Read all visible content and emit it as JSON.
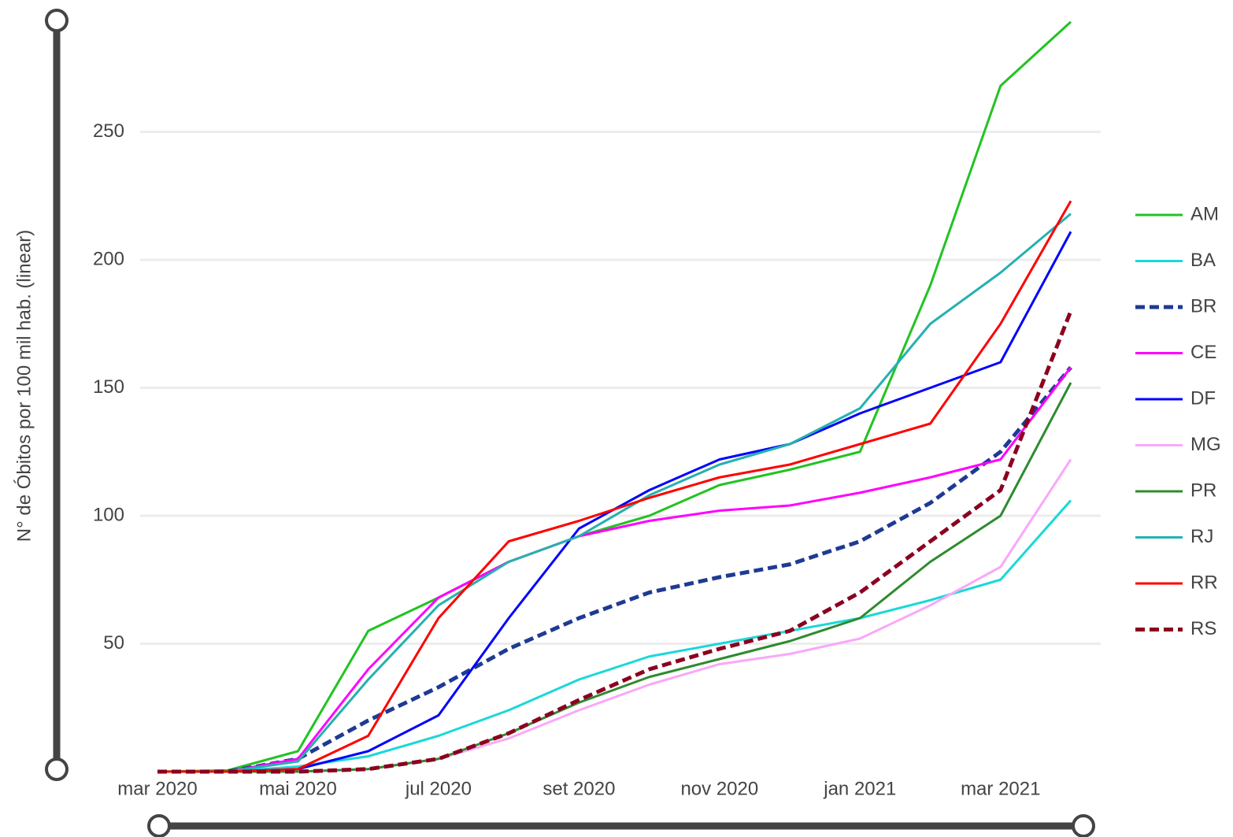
{
  "chart_data": {
    "type": "line",
    "y_label": "N° de Óbitos por 100 mil hab. (linear)",
    "x": [
      "2020-03",
      "2020-04",
      "2020-05",
      "2020-06",
      "2020-07",
      "2020-08",
      "2020-09",
      "2020-10",
      "2020-11",
      "2020-12",
      "2021-01",
      "2021-02",
      "2021-03",
      "2021-04"
    ],
    "xticks": [
      {
        "value": "2020-03",
        "label": "mar 2020"
      },
      {
        "value": "2020-05",
        "label": "mai 2020"
      },
      {
        "value": "2020-07",
        "label": "jul 2020"
      },
      {
        "value": "2020-09",
        "label": "set 2020"
      },
      {
        "value": "2020-11",
        "label": "nov 2020"
      },
      {
        "value": "2021-01",
        "label": "jan 2021"
      },
      {
        "value": "2021-03",
        "label": "mar 2021"
      }
    ],
    "ylim": [
      0,
      295
    ],
    "yticks": [
      50,
      100,
      150,
      200,
      250
    ],
    "grid": true,
    "legend": "right",
    "series": [
      {
        "name": "AM",
        "color": "#22c322",
        "dashed": false,
        "values": [
          0,
          0.5,
          8,
          55,
          68,
          82,
          92,
          100,
          112,
          118,
          125,
          190,
          268,
          293
        ]
      },
      {
        "name": "BA",
        "color": "#1ad8d8",
        "dashed": false,
        "values": [
          0,
          0,
          2,
          6,
          14,
          24,
          36,
          45,
          50,
          55,
          60,
          67,
          75,
          106
        ]
      },
      {
        "name": "BR",
        "color": "#1f3a93",
        "dashed": true,
        "values": [
          0,
          0,
          5,
          20,
          33,
          48,
          60,
          70,
          76,
          81,
          90,
          105,
          125,
          158
        ]
      },
      {
        "name": "CE",
        "color": "#ff00ff",
        "dashed": false,
        "values": [
          0,
          0,
          5,
          40,
          68,
          82,
          92,
          98,
          102,
          104,
          109,
          115,
          122,
          158
        ]
      },
      {
        "name": "DF",
        "color": "#0000ff",
        "dashed": false,
        "values": [
          0,
          0,
          1,
          8,
          22,
          60,
          95,
          110,
          122,
          128,
          140,
          150,
          160,
          211
        ]
      },
      {
        "name": "MG",
        "color": "#f9a8f9",
        "dashed": false,
        "values": [
          0,
          0,
          0,
          1,
          5,
          13,
          24,
          34,
          42,
          46,
          52,
          65,
          80,
          122
        ]
      },
      {
        "name": "PR",
        "color": "#2e8b2e",
        "dashed": false,
        "values": [
          0,
          0,
          0,
          1,
          5,
          15,
          27,
          37,
          44,
          51,
          60,
          82,
          100,
          152
        ]
      },
      {
        "name": "RJ",
        "color": "#26b0b0",
        "dashed": false,
        "values": [
          0,
          0,
          4,
          36,
          65,
          82,
          92,
          108,
          120,
          128,
          142,
          175,
          195,
          218
        ]
      },
      {
        "name": "RR",
        "color": "#ff0000",
        "dashed": false,
        "values": [
          0,
          0,
          1,
          14,
          60,
          90,
          98,
          107,
          115,
          120,
          128,
          136,
          175,
          223
        ]
      },
      {
        "name": "RS",
        "color": "#8b0020",
        "dashed": true,
        "values": [
          0,
          0,
          0,
          1,
          5,
          15,
          28,
          40,
          48,
          55,
          70,
          90,
          110,
          180
        ]
      }
    ]
  }
}
